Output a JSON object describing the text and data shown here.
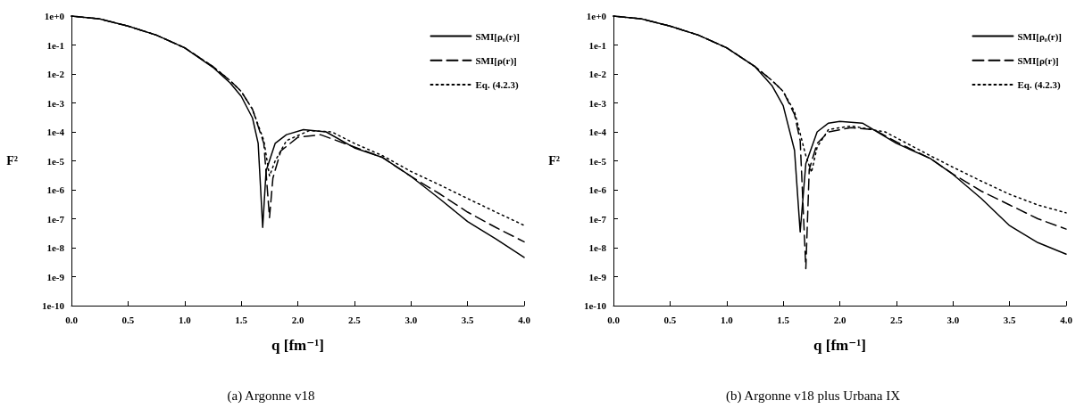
{
  "chart_data": [
    {
      "type": "line",
      "title": "(a) Argonne v18",
      "xlabel": "q [fm⁻¹]",
      "ylabel": "F²",
      "log": "y",
      "grid": false,
      "legend": "top right",
      "marker": "none",
      "xlim": [
        0,
        4
      ],
      "xticks": [
        {
          "value": 0,
          "label": "0.0"
        },
        0.5,
        {
          "value": 1,
          "label": "1.0"
        },
        1.5,
        {
          "value": 2,
          "label": "2.0"
        },
        2.5,
        {
          "value": 3,
          "label": "3.0"
        },
        3.5,
        {
          "value": 4,
          "label": "4.0"
        }
      ],
      "ylim": [
        1e-10,
        1
      ],
      "yticks": [
        {
          "value": 1,
          "label": "1e+0"
        },
        {
          "value": 0.1,
          "label": "1e-1"
        },
        {
          "value": 0.01,
          "label": "1e-2"
        },
        {
          "value": 0.001,
          "label": "1e-3"
        },
        {
          "value": 0.0001,
          "label": "1e-4"
        },
        {
          "value": 1e-05,
          "label": "1e-5"
        },
        {
          "value": 1e-06,
          "label": "1e-6"
        },
        {
          "value": 1e-07,
          "label": "1e-7"
        },
        {
          "value": 1e-08,
          "label": "1e-8"
        },
        {
          "value": 1e-09,
          "label": "1e-9"
        },
        {
          "value": 1e-10,
          "label": "1e-10"
        }
      ],
      "series": [
        {
          "name": "SMI[ρ₀(r)]",
          "color": "#000000",
          "line_style": "solid",
          "x": [
            0,
            0.25,
            0.5,
            0.75,
            1.0,
            1.25,
            1.4,
            1.5,
            1.6,
            1.65,
            1.69,
            1.72,
            1.8,
            1.9,
            2.05,
            2.25,
            2.5,
            2.75,
            3.0,
            3.25,
            3.5,
            3.75,
            4.0
          ],
          "values": [
            1,
            0.8,
            0.45,
            0.22,
            0.08,
            0.017,
            0.005,
            0.0017,
            0.0003,
            4e-05,
            5e-08,
            4.5e-06,
            4e-05,
            8e-05,
            0.00012,
            0.0001,
            2.8e-05,
            1.3e-05,
            2.9e-06,
            5e-07,
            8e-08,
            2e-08,
            4.6e-09
          ]
        },
        {
          "name": "SMI[ρ(r)]",
          "color": "#000000",
          "line_style": "dashed",
          "x": [
            0,
            0.25,
            0.5,
            0.75,
            1.0,
            1.25,
            1.4,
            1.5,
            1.6,
            1.7,
            1.75,
            1.78,
            1.85,
            2.0,
            2.2,
            2.5,
            2.75,
            3.0,
            3.25,
            3.5,
            3.75,
            4.0
          ],
          "values": [
            1,
            0.8,
            0.45,
            0.22,
            0.08,
            0.018,
            0.006,
            0.0025,
            0.0006,
            4e-05,
            1.1e-07,
            2.5e-06,
            2.2e-05,
            6.5e-05,
            8e-05,
            3e-05,
            1.3e-05,
            2.9e-06,
            7.4e-07,
            1.7e-07,
            5e-08,
            1.6e-08
          ]
        },
        {
          "name": "Eq. (4.2.3)",
          "color": "#000000",
          "line_style": "dotted",
          "x": [
            0,
            0.25,
            0.5,
            0.75,
            1.0,
            1.25,
            1.4,
            1.5,
            1.6,
            1.7,
            1.75,
            1.8,
            1.9,
            2.1,
            2.3,
            2.5,
            2.75,
            3.0,
            3.25,
            3.5,
            3.75,
            4.0
          ],
          "values": [
            1,
            0.8,
            0.45,
            0.22,
            0.08,
            0.018,
            0.006,
            0.0025,
            0.0006,
            5e-05,
            3e-06,
            1e-05,
            5e-05,
            0.00011,
            0.0001,
            4e-05,
            1.5e-05,
            4.3e-06,
            1.5e-06,
            5e-07,
            1.7e-07,
            5.9e-08
          ]
        }
      ]
    },
    {
      "type": "line",
      "title": "(b) Argonne v18 plus Urbana IX",
      "xlabel": "q [fm⁻¹]",
      "ylabel": "F²",
      "log": "y",
      "grid": false,
      "legend": "top right",
      "marker": "none",
      "xlim": [
        0,
        4
      ],
      "xticks": [
        {
          "value": 0,
          "label": "0.0"
        },
        0.5,
        {
          "value": 1,
          "label": "1.0"
        },
        1.5,
        {
          "value": 2,
          "label": "2.0"
        },
        2.5,
        {
          "value": 3,
          "label": "3.0"
        },
        3.5,
        {
          "value": 4,
          "label": "4.0"
        }
      ],
      "ylim": [
        1e-10,
        1
      ],
      "yticks": [
        {
          "value": 1,
          "label": "1e+0"
        },
        {
          "value": 0.1,
          "label": "1e-1"
        },
        {
          "value": 0.01,
          "label": "1e-2"
        },
        {
          "value": 0.001,
          "label": "1e-3"
        },
        {
          "value": 0.0001,
          "label": "1e-4"
        },
        {
          "value": 1e-05,
          "label": "1e-5"
        },
        {
          "value": 1e-06,
          "label": "1e-6"
        },
        {
          "value": 1e-07,
          "label": "1e-7"
        },
        {
          "value": 1e-08,
          "label": "1e-8"
        },
        {
          "value": 1e-09,
          "label": "1e-9"
        },
        {
          "value": 1e-10,
          "label": "1e-10"
        }
      ],
      "series": [
        {
          "name": "SMI[ρ₀(r)]",
          "color": "#000000",
          "line_style": "solid",
          "x": [
            0,
            0.25,
            0.5,
            0.75,
            1.0,
            1.25,
            1.4,
            1.5,
            1.6,
            1.65,
            1.7,
            1.8,
            1.9,
            2.0,
            2.2,
            2.5,
            2.8,
            3.0,
            3.25,
            3.5,
            3.75,
            4.0
          ],
          "values": [
            1,
            0.8,
            0.45,
            0.22,
            0.08,
            0.018,
            0.004,
            0.0008,
            2.3e-05,
            3.5e-08,
            8e-06,
            0.0001,
            0.0002,
            0.00023,
            0.0002,
            4e-05,
            1.2e-05,
            3.4e-06,
            5e-07,
            5.8e-08,
            1.5e-08,
            6e-09
          ]
        },
        {
          "name": "SMI[ρ(r)]",
          "color": "#000000",
          "line_style": "dashed",
          "x": [
            0,
            0.25,
            0.5,
            0.75,
            1.0,
            1.25,
            1.4,
            1.5,
            1.6,
            1.65,
            1.7,
            1.73,
            1.8,
            1.9,
            2.1,
            2.3,
            2.5,
            2.8,
            3.0,
            3.25,
            3.5,
            3.75,
            4.0
          ],
          "values": [
            1,
            0.8,
            0.45,
            0.22,
            0.08,
            0.018,
            0.006,
            0.0025,
            0.0004,
            5e-05,
            1.9e-09,
            5e-06,
            4e-05,
            0.0001,
            0.00014,
            0.00012,
            4.5e-05,
            1.2e-05,
            3.5e-06,
            9e-07,
            3e-07,
            1e-07,
            4.4e-08
          ]
        },
        {
          "name": "Eq. (4.2.3)",
          "color": "#000000",
          "line_style": "dotted",
          "x": [
            0,
            0.25,
            0.5,
            0.75,
            1.0,
            1.25,
            1.4,
            1.5,
            1.6,
            1.7,
            1.75,
            1.8,
            1.9,
            2.1,
            2.4,
            2.8,
            3.0,
            3.25,
            3.5,
            3.75,
            4.0
          ],
          "values": [
            1,
            0.8,
            0.45,
            0.22,
            0.08,
            0.018,
            0.006,
            0.0025,
            0.0005,
            1.5e-05,
            4e-06,
            3e-05,
            0.00012,
            0.00016,
            0.0001,
            1.5e-05,
            6e-06,
            2e-06,
            7e-07,
            3e-07,
            1.6e-07
          ]
        }
      ]
    }
  ]
}
